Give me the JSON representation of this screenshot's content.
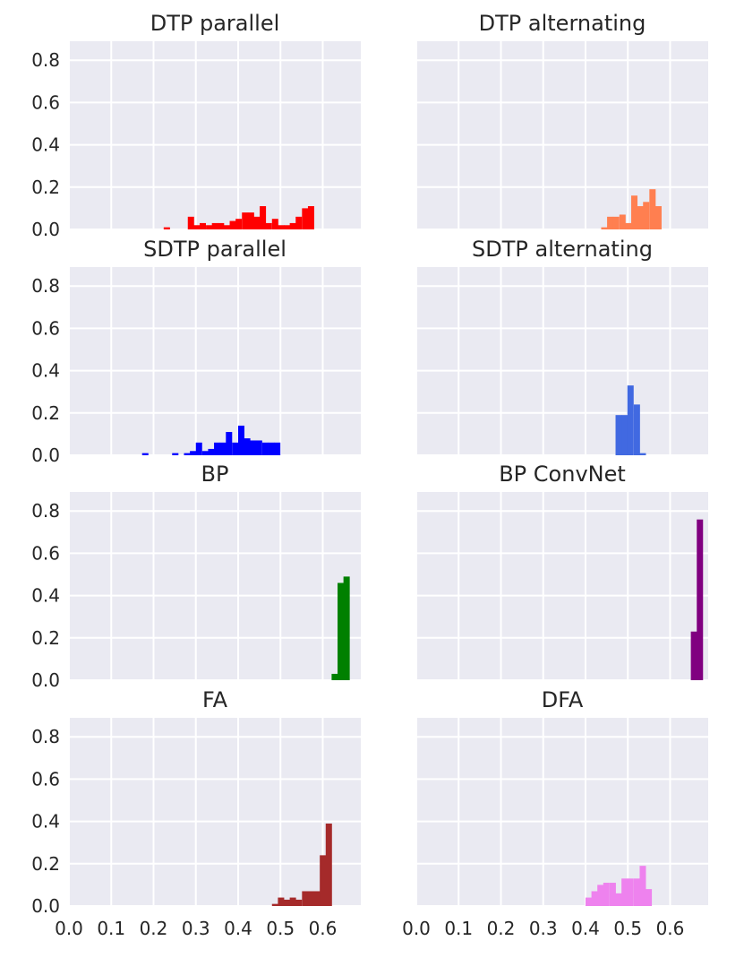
{
  "chart_data": {
    "type": "histogram-grid",
    "x_ticks": [
      "0.0",
      "0.1",
      "0.2",
      "0.3",
      "0.4",
      "0.5",
      "0.6"
    ],
    "y_ticks": [
      "0.0",
      "0.2",
      "0.4",
      "0.6",
      "0.8"
    ],
    "xlim": [
      0.0,
      0.69
    ],
    "ylim": [
      0.0,
      0.89
    ],
    "bin_width": 0.0142,
    "panels": [
      {
        "title": "DTP parallel",
        "color": "#ff0000",
        "bins": [
          [
            0.224,
            0.01
          ],
          [
            0.281,
            0.06
          ],
          [
            0.295,
            0.02
          ],
          [
            0.309,
            0.03
          ],
          [
            0.324,
            0.02
          ],
          [
            0.338,
            0.03
          ],
          [
            0.352,
            0.03
          ],
          [
            0.366,
            0.02
          ],
          [
            0.38,
            0.04
          ],
          [
            0.394,
            0.05
          ],
          [
            0.409,
            0.08
          ],
          [
            0.423,
            0.08
          ],
          [
            0.437,
            0.06
          ],
          [
            0.451,
            0.11
          ],
          [
            0.465,
            0.03
          ],
          [
            0.48,
            0.05
          ],
          [
            0.494,
            0.02
          ],
          [
            0.508,
            0.02
          ],
          [
            0.522,
            0.03
          ],
          [
            0.536,
            0.06
          ],
          [
            0.551,
            0.1
          ],
          [
            0.565,
            0.11
          ]
        ]
      },
      {
        "title": "DTP alternating",
        "color": "#ff7f50",
        "bins": [
          [
            0.437,
            0.01
          ],
          [
            0.451,
            0.06
          ],
          [
            0.465,
            0.06
          ],
          [
            0.48,
            0.07
          ],
          [
            0.494,
            0.03
          ],
          [
            0.508,
            0.16
          ],
          [
            0.522,
            0.11
          ],
          [
            0.536,
            0.13
          ],
          [
            0.551,
            0.19
          ],
          [
            0.565,
            0.11
          ]
        ]
      },
      {
        "title": "SDTP parallel",
        "color": "#0000ff",
        "bins": [
          [
            0.173,
            0.01
          ],
          [
            0.244,
            0.01
          ],
          [
            0.272,
            0.01
          ],
          [
            0.286,
            0.02
          ],
          [
            0.3,
            0.06
          ],
          [
            0.315,
            0.02
          ],
          [
            0.329,
            0.03
          ],
          [
            0.343,
            0.06
          ],
          [
            0.357,
            0.06
          ],
          [
            0.371,
            0.11
          ],
          [
            0.386,
            0.06
          ],
          [
            0.4,
            0.14
          ],
          [
            0.414,
            0.08
          ],
          [
            0.428,
            0.07
          ],
          [
            0.442,
            0.07
          ],
          [
            0.457,
            0.06
          ],
          [
            0.471,
            0.06
          ],
          [
            0.485,
            0.06
          ]
        ]
      },
      {
        "title": "SDTP alternating",
        "color": "#4169e1",
        "bins": [
          [
            0.471,
            0.19
          ],
          [
            0.485,
            0.19
          ],
          [
            0.499,
            0.33
          ],
          [
            0.514,
            0.24
          ],
          [
            0.528,
            0.01
          ]
        ]
      },
      {
        "title": "BP",
        "color": "#008000",
        "bins": [
          [
            0.621,
            0.03
          ],
          [
            0.635,
            0.46
          ],
          [
            0.649,
            0.49
          ]
        ]
      },
      {
        "title": "BP ConvNet",
        "color": "#800080",
        "bins": [
          [
            0.649,
            0.23
          ],
          [
            0.663,
            0.76
          ]
        ]
      },
      {
        "title": "FA",
        "color": "#a52a2a",
        "bins": [
          [
            0.48,
            0.01
          ],
          [
            0.494,
            0.04
          ],
          [
            0.508,
            0.03
          ],
          [
            0.522,
            0.04
          ],
          [
            0.536,
            0.03
          ],
          [
            0.551,
            0.07
          ],
          [
            0.565,
            0.07
          ],
          [
            0.579,
            0.07
          ],
          [
            0.593,
            0.24
          ],
          [
            0.607,
            0.39
          ]
        ]
      },
      {
        "title": "DFA",
        "color": "#ee82ee",
        "bins": [
          [
            0.4,
            0.04
          ],
          [
            0.414,
            0.07
          ],
          [
            0.428,
            0.1
          ],
          [
            0.442,
            0.11
          ],
          [
            0.457,
            0.11
          ],
          [
            0.471,
            0.06
          ],
          [
            0.485,
            0.13
          ],
          [
            0.499,
            0.13
          ],
          [
            0.514,
            0.13
          ],
          [
            0.528,
            0.19
          ],
          [
            0.542,
            0.08
          ]
        ]
      }
    ]
  }
}
